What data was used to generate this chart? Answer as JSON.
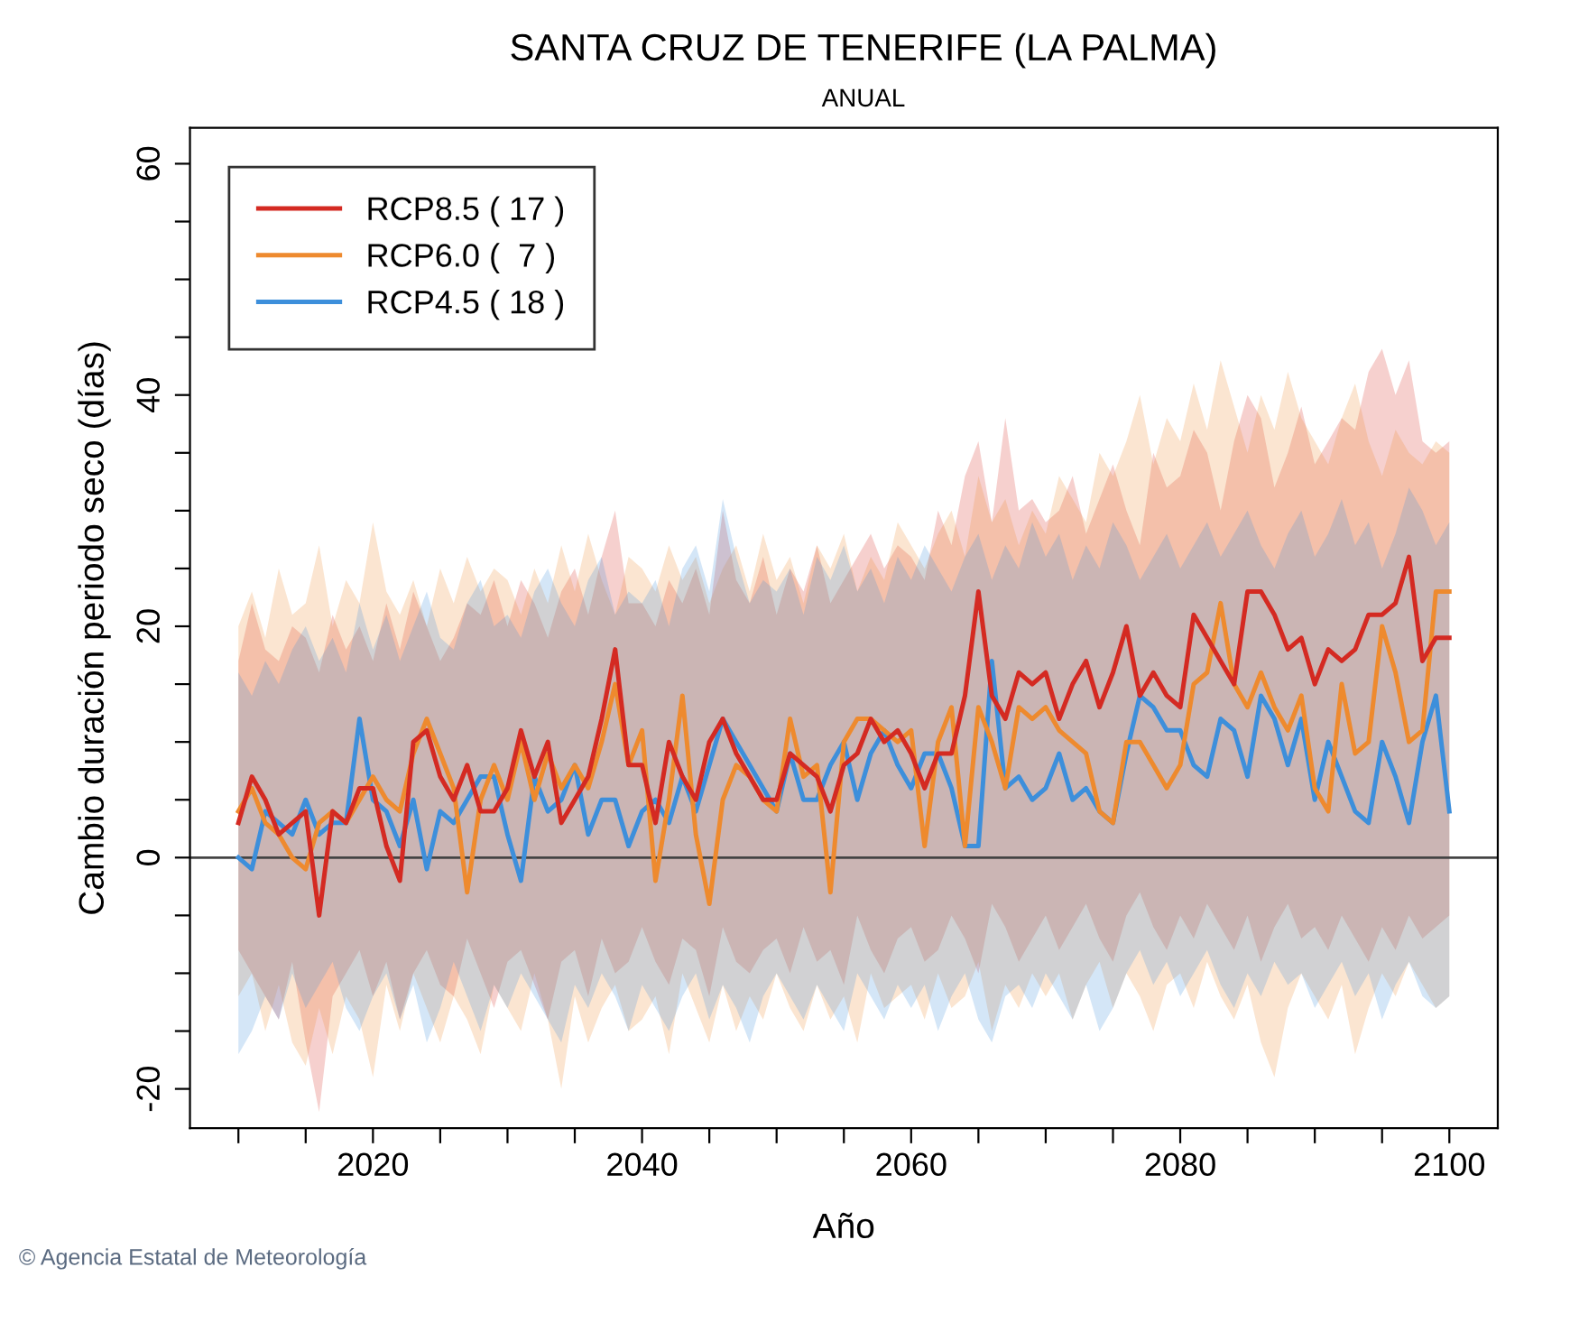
{
  "chart_data": {
    "type": "line",
    "title": "SANTA CRUZ DE TENERIFE (LA PALMA)",
    "subtitle": "ANUAL",
    "xlabel": "Año",
    "ylabel": "Cambio duración periodo seco (días)",
    "annotations": [
      "© Agencia Estatal de Meteorología"
    ],
    "x": [
      2010,
      2011,
      2012,
      2013,
      2014,
      2015,
      2016,
      2017,
      2018,
      2019,
      2020,
      2021,
      2022,
      2023,
      2024,
      2025,
      2026,
      2027,
      2028,
      2029,
      2030,
      2031,
      2032,
      2033,
      2034,
      2035,
      2036,
      2037,
      2038,
      2039,
      2040,
      2041,
      2042,
      2043,
      2044,
      2045,
      2046,
      2047,
      2048,
      2049,
      2050,
      2051,
      2052,
      2053,
      2054,
      2055,
      2056,
      2057,
      2058,
      2059,
      2060,
      2061,
      2062,
      2063,
      2064,
      2065,
      2066,
      2067,
      2068,
      2069,
      2070,
      2071,
      2072,
      2073,
      2074,
      2075,
      2076,
      2077,
      2078,
      2079,
      2080,
      2081,
      2082,
      2083,
      2084,
      2085,
      2086,
      2087,
      2088,
      2089,
      2090,
      2091,
      2092,
      2093,
      2094,
      2095,
      2096,
      2097,
      2098,
      2099,
      2100
    ],
    "series": [
      {
        "name": "RCP8.5 ( 17 )",
        "color": "#d42a22",
        "values": [
          3,
          7,
          5,
          2,
          3,
          4,
          -5,
          4,
          3,
          6,
          6,
          1,
          -2,
          10,
          11,
          7,
          5,
          8,
          4,
          4,
          6,
          11,
          7,
          10,
          3,
          5,
          7,
          12,
          18,
          8,
          8,
          3,
          10,
          7,
          5,
          10,
          12,
          9,
          7,
          5,
          5,
          9,
          8,
          7,
          4,
          8,
          9,
          12,
          10,
          11,
          9,
          6,
          9,
          9,
          14,
          23,
          14,
          12,
          16,
          15,
          16,
          12,
          15,
          17,
          13,
          16,
          20,
          14,
          16,
          14,
          13,
          21,
          19,
          17,
          15,
          23,
          23,
          21,
          18,
          19,
          15,
          18,
          17,
          18,
          21,
          21,
          22,
          26,
          17,
          19,
          19
        ],
        "upper": [
          17,
          22,
          18,
          17,
          20,
          19,
          16,
          21,
          18,
          20,
          17,
          22,
          18,
          23,
          20,
          17,
          19,
          22,
          21,
          24,
          20,
          24,
          22,
          19,
          23,
          25,
          21,
          26,
          30,
          22,
          22,
          20,
          24,
          22,
          25,
          21,
          30,
          24,
          22,
          26,
          21,
          25,
          23,
          27,
          22,
          24,
          26,
          28,
          25,
          27,
          26,
          24,
          30,
          27,
          33,
          36,
          29,
          38,
          30,
          31,
          29,
          30,
          33,
          28,
          31,
          34,
          30,
          27,
          35,
          32,
          33,
          37,
          35,
          30,
          36,
          40,
          38,
          32,
          35,
          39,
          34,
          36,
          38,
          37,
          42,
          44,
          40,
          43,
          36,
          35,
          36
        ],
        "lower": [
          -8,
          -10,
          -12,
          -14,
          -9,
          -16,
          -22,
          -12,
          -10,
          -8,
          -12,
          -9,
          -14,
          -10,
          -8,
          -11,
          -12,
          -7,
          -10,
          -13,
          -9,
          -8,
          -11,
          -14,
          -9,
          -8,
          -12,
          -7,
          -10,
          -9,
          -6,
          -9,
          -11,
          -7,
          -8,
          -12,
          -6,
          -9,
          -10,
          -8,
          -7,
          -10,
          -6,
          -9,
          -8,
          -11,
          -5,
          -8,
          -10,
          -7,
          -6,
          -9,
          -8,
          -5,
          -7,
          -10,
          -4,
          -6,
          -9,
          -7,
          -5,
          -8,
          -6,
          -4,
          -7,
          -9,
          -5,
          -3,
          -6,
          -8,
          -5,
          -7,
          -4,
          -6,
          -8,
          -5,
          -9,
          -6,
          -4,
          -7,
          -6,
          -8,
          -5,
          -7,
          -9,
          -6,
          -8,
          -5,
          -7,
          -6,
          -5
        ]
      },
      {
        "name": "RCP6.0 (  7 )",
        "color": "#ee8a2e",
        "values": [
          4,
          6,
          3,
          2,
          0,
          -1,
          3,
          4,
          3,
          5,
          7,
          5,
          4,
          9,
          12,
          9,
          6,
          -3,
          5,
          8,
          5,
          10,
          5,
          9,
          6,
          8,
          6,
          10,
          15,
          8,
          11,
          -2,
          5,
          14,
          2,
          -4,
          5,
          8,
          7,
          5,
          4,
          12,
          7,
          8,
          -3,
          10,
          12,
          12,
          11,
          10,
          11,
          1,
          10,
          13,
          1,
          13,
          10,
          6,
          13,
          12,
          13,
          11,
          10,
          9,
          4,
          3,
          10,
          10,
          8,
          6,
          8,
          15,
          16,
          22,
          15,
          13,
          16,
          13,
          11,
          14,
          6,
          4,
          15,
          9,
          10,
          20,
          16,
          10,
          11,
          23,
          23
        ],
        "upper": [
          20,
          23,
          19,
          25,
          21,
          22,
          27,
          20,
          24,
          22,
          29,
          23,
          21,
          24,
          20,
          25,
          22,
          26,
          23,
          25,
          24,
          21,
          25,
          22,
          27,
          23,
          28,
          24,
          21,
          26,
          25,
          23,
          27,
          24,
          26,
          22,
          25,
          27,
          23,
          28,
          24,
          26,
          22,
          27,
          25,
          28,
          23,
          26,
          24,
          29,
          27,
          25,
          28,
          30,
          26,
          33,
          29,
          31,
          27,
          30,
          28,
          33,
          31,
          29,
          35,
          33,
          36,
          40,
          34,
          38,
          36,
          41,
          37,
          43,
          39,
          35,
          40,
          37,
          42,
          38,
          36,
          34,
          38,
          41,
          36,
          33,
          37,
          35,
          34,
          36,
          35
        ],
        "lower": [
          -12,
          -10,
          -15,
          -11,
          -16,
          -18,
          -13,
          -17,
          -12,
          -14,
          -19,
          -11,
          -15,
          -10,
          -13,
          -16,
          -12,
          -14,
          -17,
          -11,
          -13,
          -15,
          -10,
          -14,
          -20,
          -12,
          -16,
          -13,
          -11,
          -15,
          -14,
          -12,
          -17,
          -10,
          -13,
          -16,
          -11,
          -15,
          -12,
          -14,
          -10,
          -13,
          -15,
          -11,
          -14,
          -12,
          -16,
          -10,
          -13,
          -12,
          -11,
          -14,
          -10,
          -13,
          -12,
          -9,
          -15,
          -11,
          -13,
          -10,
          -12,
          -10,
          -14,
          -11,
          -9,
          -13,
          -10,
          -12,
          -15,
          -11,
          -10,
          -13,
          -9,
          -12,
          -14,
          -11,
          -16,
          -19,
          -13,
          -10,
          -12,
          -14,
          -11,
          -17,
          -13,
          -10,
          -12,
          -9,
          -11,
          -13,
          -12
        ]
      },
      {
        "name": "RCP4.5 ( 18 )",
        "color": "#3d8fdb",
        "values": [
          0,
          -1,
          4,
          3,
          2,
          5,
          2,
          3,
          3,
          12,
          5,
          4,
          1,
          5,
          -1,
          4,
          3,
          5,
          7,
          7,
          2,
          -2,
          7,
          4,
          5,
          8,
          2,
          5,
          5,
          1,
          4,
          5,
          3,
          7,
          4,
          8,
          12,
          10,
          8,
          6,
          4,
          9,
          5,
          5,
          8,
          10,
          5,
          9,
          11,
          8,
          6,
          9,
          9,
          6,
          1,
          1,
          17,
          6,
          7,
          5,
          6,
          9,
          5,
          6,
          4,
          3,
          9,
          14,
          13,
          11,
          11,
          8,
          7,
          12,
          11,
          7,
          14,
          12,
          8,
          12,
          5,
          10,
          7,
          4,
          3,
          10,
          7,
          3,
          10,
          14,
          4
        ],
        "upper": [
          16,
          14,
          17,
          15,
          18,
          20,
          17,
          19,
          16,
          22,
          18,
          21,
          17,
          20,
          23,
          19,
          18,
          22,
          24,
          20,
          21,
          19,
          23,
          25,
          22,
          20,
          24,
          26,
          21,
          23,
          22,
          24,
          20,
          25,
          27,
          23,
          31,
          26,
          22,
          24,
          23,
          25,
          21,
          26,
          24,
          27,
          23,
          25,
          22,
          26,
          24,
          27,
          25,
          23,
          26,
          28,
          24,
          27,
          25,
          29,
          26,
          28,
          24,
          27,
          25,
          29,
          27,
          24,
          26,
          28,
          25,
          27,
          29,
          26,
          28,
          30,
          27,
          25,
          28,
          30,
          26,
          28,
          31,
          27,
          29,
          25,
          28,
          32,
          30,
          27,
          29
        ],
        "lower": [
          -17,
          -15,
          -12,
          -14,
          -10,
          -13,
          -11,
          -9,
          -13,
          -15,
          -12,
          -10,
          -14,
          -11,
          -16,
          -13,
          -9,
          -12,
          -15,
          -11,
          -13,
          -10,
          -12,
          -14,
          -16,
          -11,
          -13,
          -10,
          -12,
          -15,
          -11,
          -13,
          -15,
          -12,
          -10,
          -14,
          -11,
          -13,
          -16,
          -12,
          -10,
          -12,
          -14,
          -11,
          -13,
          -15,
          -10,
          -12,
          -14,
          -11,
          -13,
          -11,
          -15,
          -12,
          -10,
          -14,
          -16,
          -12,
          -11,
          -13,
          -10,
          -12,
          -14,
          -11,
          -15,
          -13,
          -10,
          -8,
          -11,
          -9,
          -12,
          -10,
          -8,
          -11,
          -13,
          -10,
          -12,
          -9,
          -11,
          -10,
          -13,
          -11,
          -9,
          -12,
          -10,
          -14,
          -11,
          -9,
          -12,
          -13,
          -12
        ]
      }
    ],
    "xlim": [
      2006.4,
      2103.6
    ],
    "ylim": [
      -23.4,
      63.1
    ],
    "xticks": [
      {
        "value": 2010,
        "label": null
      },
      {
        "value": 2015,
        "label": null
      },
      2020,
      {
        "value": 2025,
        "label": null
      },
      {
        "value": 2030,
        "label": null
      },
      {
        "value": 2035,
        "label": null
      },
      2040,
      {
        "value": 2045,
        "label": null
      },
      {
        "value": 2050,
        "label": null
      },
      {
        "value": 2055,
        "label": null
      },
      2060,
      {
        "value": 2065,
        "label": null
      },
      {
        "value": 2070,
        "label": null
      },
      {
        "value": 2075,
        "label": null
      },
      2080,
      {
        "value": 2085,
        "label": null
      },
      {
        "value": 2090,
        "label": null
      },
      {
        "value": 2095,
        "label": null
      },
      2100
    ],
    "yticks": [
      -20,
      {
        "value": -15,
        "label": null
      },
      {
        "value": -10,
        "label": null
      },
      {
        "value": -5,
        "label": null
      },
      0,
      {
        "value": 5,
        "label": null
      },
      {
        "value": 10,
        "label": null
      },
      {
        "value": 15,
        "label": null
      },
      20,
      {
        "value": 25,
        "label": null
      },
      {
        "value": 30,
        "label": null
      },
      {
        "value": 35,
        "label": null
      },
      40,
      {
        "value": 45,
        "label": null
      },
      {
        "value": 50,
        "label": null
      },
      {
        "value": 55,
        "label": null
      },
      60
    ],
    "ref_lines": [
      {
        "axis": "y",
        "value": 0,
        "color": "#444444"
      }
    ],
    "grid": false,
    "legend": "top left",
    "line_style": "solid"
  }
}
